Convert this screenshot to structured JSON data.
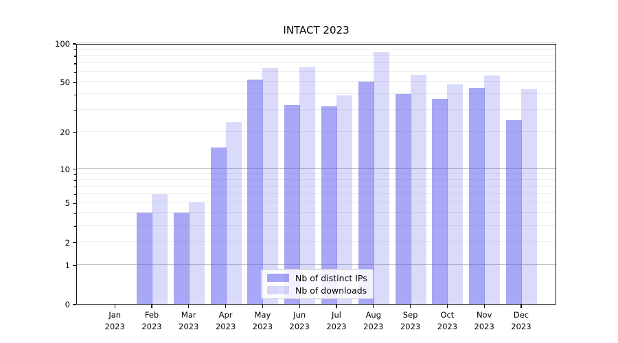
{
  "chart_data": {
    "type": "bar",
    "title": "INTACT 2023",
    "x": {
      "months": [
        "Jan",
        "Feb",
        "Mar",
        "Apr",
        "May",
        "Jun",
        "Jul",
        "Aug",
        "Sep",
        "Oct",
        "Nov",
        "Dec"
      ],
      "year": "2023"
    },
    "series": [
      {
        "name": "Nb of distinct IPs",
        "color": "rgba(86,86,235,0.52)",
        "values": [
          0,
          4,
          4,
          15,
          52,
          33,
          32,
          50,
          40,
          37,
          45,
          25
        ]
      },
      {
        "name": "Nb of downloads",
        "color": "rgba(86,86,235,0.22)",
        "values": [
          0,
          6,
          5,
          24,
          64,
          65,
          39,
          85,
          57,
          48,
          56,
          44
        ]
      }
    ],
    "y_axis": {
      "scale": "log1p",
      "min": 0,
      "max": 100,
      "tick_labels": [
        0,
        1,
        2,
        5,
        10,
        20,
        50,
        100
      ],
      "major_gridlines": [
        1,
        10,
        100
      ],
      "minor_gridlines": [
        2,
        3,
        4,
        5,
        6,
        7,
        8,
        9,
        20,
        30,
        40,
        50,
        60,
        70,
        80,
        90
      ]
    },
    "legend": {
      "position": "lower-center"
    },
    "grid": true,
    "colors": {
      "bar_base": "#5656eb",
      "major_grid": "#c4c4c4",
      "minor_grid": "#ececec",
      "spine": "#151515",
      "text": "#000000",
      "legend_border": "#cccccc",
      "legend_bg": "rgba(255,255,255,0.85)"
    }
  }
}
